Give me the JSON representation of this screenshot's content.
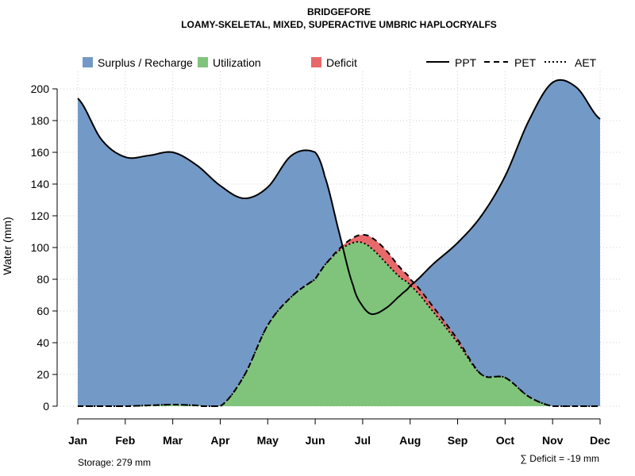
{
  "chart_data": {
    "type": "area",
    "title": "BRIDGEFORE",
    "subtitle": "LOAMY-SKELETAL, MIXED, SUPERACTIVE UMBRIC HAPLOCRYALFS",
    "ylabel": "Water (mm)",
    "xlabel": "",
    "ylim": [
      0,
      210
    ],
    "yticks": [
      0,
      20,
      40,
      60,
      80,
      100,
      120,
      140,
      160,
      180,
      200
    ],
    "categories": [
      "Jan",
      "Feb",
      "Mar",
      "Apr",
      "May",
      "Jun",
      "Jul",
      "Aug",
      "Sep",
      "Oct",
      "Nov",
      "Dec"
    ],
    "x": [
      1,
      1.5,
      2,
      2.5,
      3,
      3.5,
      4,
      4.5,
      5,
      5.5,
      6,
      6.2,
      6.5,
      6.8,
      7,
      7.2,
      7.5,
      7.8,
      8,
      8.5,
      9,
      9.5,
      10,
      10.5,
      11,
      11.5,
      12
    ],
    "series": [
      {
        "name": "PPT",
        "line": "solid",
        "values": [
          194,
          168,
          157,
          158,
          160,
          152,
          139,
          131,
          138,
          158,
          160,
          145,
          110,
          76,
          63,
          58,
          62,
          70,
          76,
          90,
          103,
          120,
          145,
          180,
          204,
          201,
          181
        ]
      },
      {
        "name": "PET",
        "line": "dashed",
        "values": [
          0,
          0,
          0,
          0.5,
          1,
          0.5,
          0,
          19,
          51,
          69,
          80,
          89,
          99,
          106,
          108,
          106,
          98,
          87,
          80,
          62,
          42,
          20,
          18,
          6,
          0,
          0,
          0
        ]
      },
      {
        "name": "AET",
        "line": "dotted",
        "values": [
          0,
          0,
          0,
          0.5,
          1,
          0.5,
          0,
          19,
          51,
          69,
          80,
          89,
          98,
          103,
          103,
          99,
          90,
          81,
          76,
          59,
          40,
          20,
          18,
          6,
          0,
          0,
          0
        ]
      }
    ],
    "legend": {
      "placement": "top",
      "fill_entries": [
        "Surplus / Recharge",
        "Utilization",
        "Deficit"
      ],
      "line_entries": [
        "PPT",
        "PET",
        "AET"
      ]
    },
    "colors": {
      "surplus": "#7399c6",
      "utilization": "#7fc47a",
      "deficit": "#e8696b",
      "line": "#000000"
    },
    "storage_label": "Storage: 279 mm",
    "deficit_label": "∑ Deficit = -19 mm",
    "grid": true
  }
}
